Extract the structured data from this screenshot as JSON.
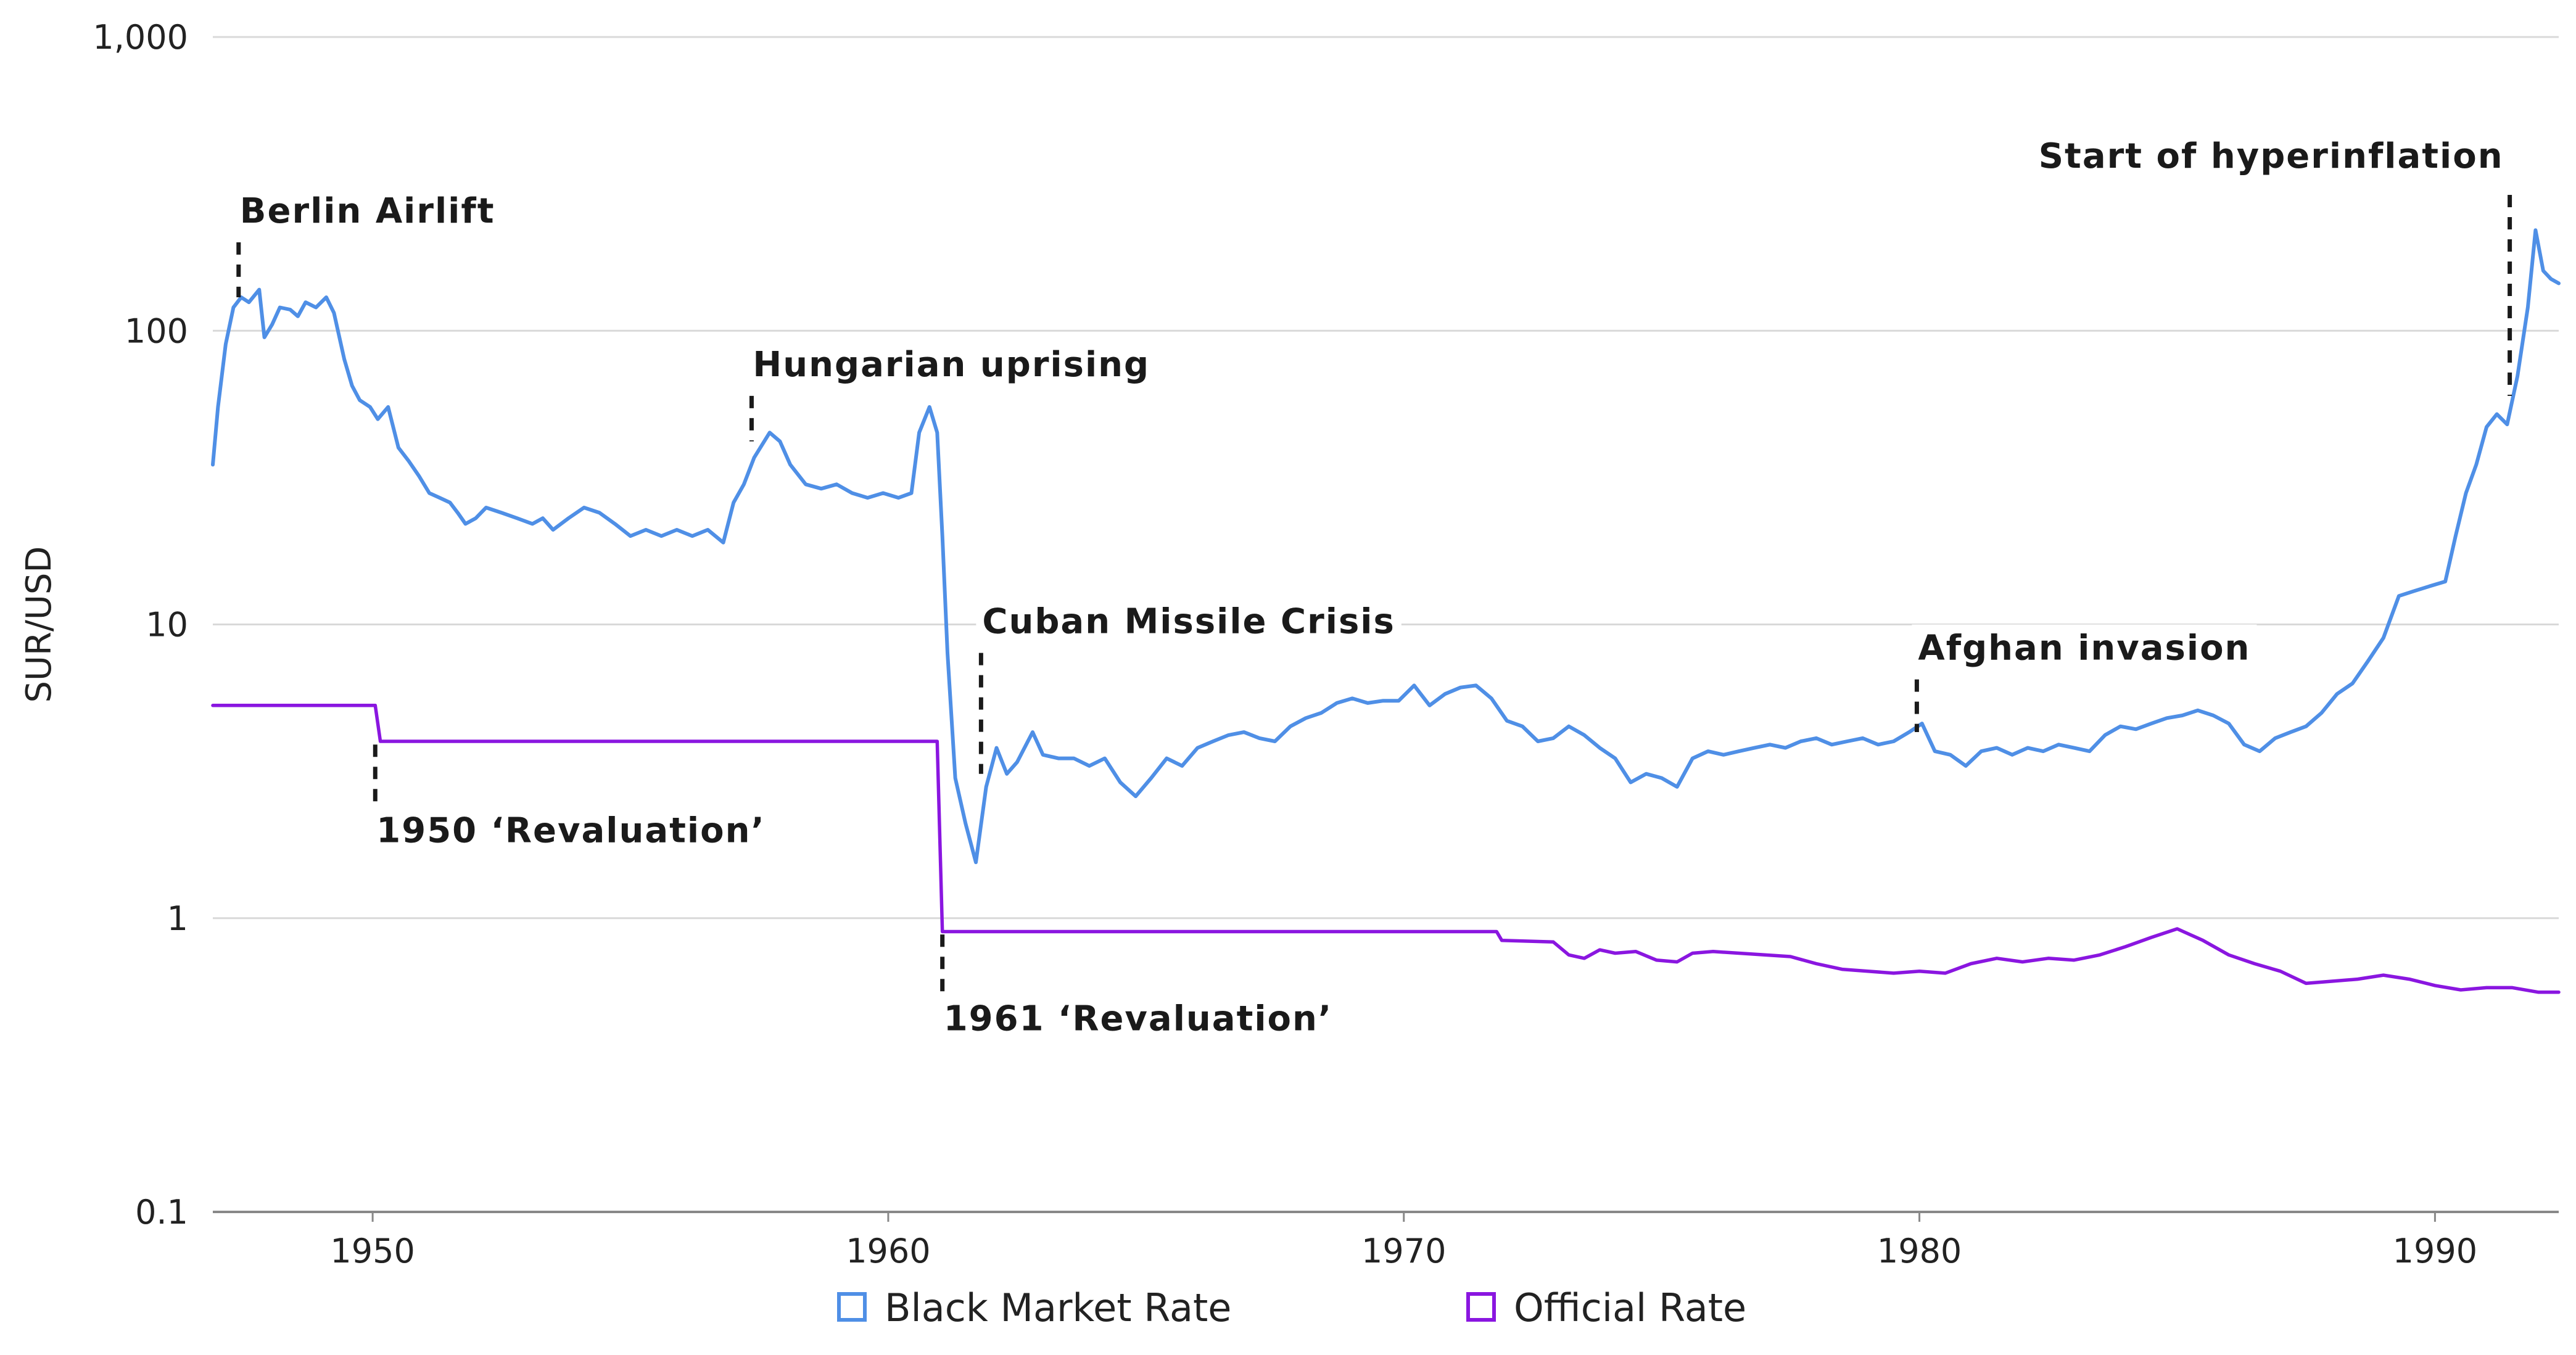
{
  "chart_data": {
    "type": "line",
    "ylabel": "SUR/USD",
    "y_scale": "log",
    "ylim": [
      0.1,
      1000
    ],
    "y_ticks": [
      "0.1",
      "1",
      "10",
      "100",
      "1,000"
    ],
    "xlim": [
      1946.9,
      1992.4
    ],
    "x_ticks": [
      "1950",
      "1960",
      "1970",
      "1980",
      "1990"
    ],
    "grid": true,
    "legend_position": "bottom",
    "series": [
      {
        "name": "Black Market Rate",
        "color": "#4f8fe6",
        "points": [
          [
            1946.9,
            35
          ],
          [
            1947.0,
            55
          ],
          [
            1947.15,
            90
          ],
          [
            1947.3,
            120
          ],
          [
            1947.45,
            130
          ],
          [
            1947.6,
            125
          ],
          [
            1947.8,
            138
          ],
          [
            1947.9,
            95
          ],
          [
            1948.05,
            105
          ],
          [
            1948.2,
            120
          ],
          [
            1948.4,
            118
          ],
          [
            1948.55,
            112
          ],
          [
            1948.7,
            125
          ],
          [
            1948.9,
            120
          ],
          [
            1949.1,
            130
          ],
          [
            1949.25,
            115
          ],
          [
            1949.45,
            80
          ],
          [
            1949.6,
            65
          ],
          [
            1949.75,
            58
          ],
          [
            1949.95,
            55
          ],
          [
            1950.1,
            50
          ],
          [
            1950.3,
            55
          ],
          [
            1950.5,
            40
          ],
          [
            1950.7,
            36
          ],
          [
            1950.9,
            32
          ],
          [
            1951.1,
            28
          ],
          [
            1951.3,
            27
          ],
          [
            1951.5,
            26
          ],
          [
            1951.65,
            24
          ],
          [
            1951.8,
            22
          ],
          [
            1952.0,
            23
          ],
          [
            1952.2,
            25
          ],
          [
            1952.5,
            24
          ],
          [
            1952.8,
            23
          ],
          [
            1953.1,
            22
          ],
          [
            1953.3,
            23
          ],
          [
            1953.5,
            21
          ],
          [
            1953.8,
            23
          ],
          [
            1954.1,
            25
          ],
          [
            1954.4,
            24
          ],
          [
            1954.7,
            22
          ],
          [
            1955.0,
            20
          ],
          [
            1955.3,
            21
          ],
          [
            1955.6,
            20
          ],
          [
            1955.9,
            21
          ],
          [
            1956.2,
            20
          ],
          [
            1956.5,
            21
          ],
          [
            1956.8,
            19
          ],
          [
            1957.0,
            26
          ],
          [
            1957.2,
            30
          ],
          [
            1957.4,
            37
          ],
          [
            1957.7,
            45
          ],
          [
            1957.9,
            42
          ],
          [
            1958.1,
            35
          ],
          [
            1958.4,
            30
          ],
          [
            1958.7,
            29
          ],
          [
            1959.0,
            30
          ],
          [
            1959.3,
            28
          ],
          [
            1959.6,
            27
          ],
          [
            1959.9,
            28
          ],
          [
            1960.2,
            27
          ],
          [
            1960.45,
            28
          ],
          [
            1960.6,
            45
          ],
          [
            1960.8,
            55
          ],
          [
            1960.95,
            45
          ],
          [
            1961.05,
            20
          ],
          [
            1961.15,
            8
          ],
          [
            1961.3,
            3
          ],
          [
            1961.5,
            2.1
          ],
          [
            1961.7,
            1.55
          ],
          [
            1961.9,
            2.8
          ],
          [
            1962.1,
            3.8
          ],
          [
            1962.3,
            3.1
          ],
          [
            1962.5,
            3.4
          ],
          [
            1962.8,
            4.3
          ],
          [
            1963.0,
            3.6
          ],
          [
            1963.3,
            3.5
          ],
          [
            1963.6,
            3.5
          ],
          [
            1963.9,
            3.3
          ],
          [
            1964.2,
            3.5
          ],
          [
            1964.5,
            2.9
          ],
          [
            1964.8,
            2.6
          ],
          [
            1965.1,
            3.0
          ],
          [
            1965.4,
            3.5
          ],
          [
            1965.7,
            3.3
          ],
          [
            1966.0,
            3.8
          ],
          [
            1966.3,
            4.0
          ],
          [
            1966.6,
            4.2
          ],
          [
            1966.9,
            4.3
          ],
          [
            1967.2,
            4.1
          ],
          [
            1967.5,
            4.0
          ],
          [
            1967.8,
            4.5
          ],
          [
            1968.1,
            4.8
          ],
          [
            1968.4,
            5.0
          ],
          [
            1968.7,
            5.4
          ],
          [
            1969.0,
            5.6
          ],
          [
            1969.3,
            5.4
          ],
          [
            1969.6,
            5.5
          ],
          [
            1969.9,
            5.5
          ],
          [
            1970.2,
            6.2
          ],
          [
            1970.5,
            5.3
          ],
          [
            1970.8,
            5.8
          ],
          [
            1971.1,
            6.1
          ],
          [
            1971.4,
            6.2
          ],
          [
            1971.7,
            5.6
          ],
          [
            1972.0,
            4.7
          ],
          [
            1972.3,
            4.5
          ],
          [
            1972.6,
            4.0
          ],
          [
            1972.9,
            4.1
          ],
          [
            1973.2,
            4.5
          ],
          [
            1973.5,
            4.2
          ],
          [
            1973.8,
            3.8
          ],
          [
            1974.1,
            3.5
          ],
          [
            1974.4,
            2.9
          ],
          [
            1974.7,
            3.1
          ],
          [
            1975.0,
            3.0
          ],
          [
            1975.3,
            2.8
          ],
          [
            1975.6,
            3.5
          ],
          [
            1975.9,
            3.7
          ],
          [
            1976.2,
            3.6
          ],
          [
            1976.5,
            3.7
          ],
          [
            1976.8,
            3.8
          ],
          [
            1977.1,
            3.9
          ],
          [
            1977.4,
            3.8
          ],
          [
            1977.7,
            4.0
          ],
          [
            1978.0,
            4.1
          ],
          [
            1978.3,
            3.9
          ],
          [
            1978.6,
            4.0
          ],
          [
            1978.9,
            4.1
          ],
          [
            1979.2,
            3.9
          ],
          [
            1979.5,
            4.0
          ],
          [
            1979.8,
            4.3
          ],
          [
            1980.05,
            4.6
          ],
          [
            1980.3,
            3.7
          ],
          [
            1980.6,
            3.6
          ],
          [
            1980.9,
            3.3
          ],
          [
            1981.2,
            3.7
          ],
          [
            1981.5,
            3.8
          ],
          [
            1981.8,
            3.6
          ],
          [
            1982.1,
            3.8
          ],
          [
            1982.4,
            3.7
          ],
          [
            1982.7,
            3.9
          ],
          [
            1983.0,
            3.8
          ],
          [
            1983.3,
            3.7
          ],
          [
            1983.6,
            4.2
          ],
          [
            1983.9,
            4.5
          ],
          [
            1984.2,
            4.4
          ],
          [
            1984.5,
            4.6
          ],
          [
            1984.8,
            4.8
          ],
          [
            1985.1,
            4.9
          ],
          [
            1985.4,
            5.1
          ],
          [
            1985.7,
            4.9
          ],
          [
            1986.0,
            4.6
          ],
          [
            1986.3,
            3.9
          ],
          [
            1986.6,
            3.7
          ],
          [
            1986.9,
            4.1
          ],
          [
            1987.2,
            4.3
          ],
          [
            1987.5,
            4.5
          ],
          [
            1987.8,
            5.0
          ],
          [
            1988.1,
            5.8
          ],
          [
            1988.4,
            6.3
          ],
          [
            1988.7,
            7.5
          ],
          [
            1989.0,
            9.0
          ],
          [
            1989.3,
            12.5
          ],
          [
            1989.6,
            13.0
          ],
          [
            1989.9,
            13.5
          ],
          [
            1990.2,
            14.0
          ],
          [
            1990.4,
            20
          ],
          [
            1990.6,
            28
          ],
          [
            1990.8,
            35
          ],
          [
            1991.0,
            47
          ],
          [
            1991.2,
            52
          ],
          [
            1991.4,
            48
          ],
          [
            1991.6,
            70
          ],
          [
            1991.8,
            120
          ],
          [
            1991.95,
            220
          ],
          [
            1992.1,
            160
          ],
          [
            1992.25,
            150
          ],
          [
            1992.4,
            145
          ]
        ]
      },
      {
        "name": "Official Rate",
        "color": "#8a16e0",
        "points": [
          [
            1946.9,
            5.3
          ],
          [
            1950.05,
            5.3
          ],
          [
            1950.15,
            4.0
          ],
          [
            1960.95,
            4.0
          ],
          [
            1961.05,
            0.9
          ],
          [
            1971.8,
            0.9
          ],
          [
            1971.9,
            0.84
          ],
          [
            1972.9,
            0.83
          ],
          [
            1973.2,
            0.75
          ],
          [
            1973.5,
            0.73
          ],
          [
            1973.8,
            0.78
          ],
          [
            1974.1,
            0.76
          ],
          [
            1974.5,
            0.77
          ],
          [
            1974.9,
            0.72
          ],
          [
            1975.3,
            0.71
          ],
          [
            1975.6,
            0.76
          ],
          [
            1976.0,
            0.77
          ],
          [
            1976.5,
            0.76
          ],
          [
            1977.0,
            0.75
          ],
          [
            1977.5,
            0.74
          ],
          [
            1978.0,
            0.7
          ],
          [
            1978.5,
            0.67
          ],
          [
            1979.0,
            0.66
          ],
          [
            1979.5,
            0.65
          ],
          [
            1980.0,
            0.66
          ],
          [
            1980.5,
            0.65
          ],
          [
            1981.0,
            0.7
          ],
          [
            1981.5,
            0.73
          ],
          [
            1982.0,
            0.71
          ],
          [
            1982.5,
            0.73
          ],
          [
            1983.0,
            0.72
          ],
          [
            1983.5,
            0.75
          ],
          [
            1984.0,
            0.8
          ],
          [
            1984.5,
            0.86
          ],
          [
            1985.0,
            0.92
          ],
          [
            1985.5,
            0.84
          ],
          [
            1986.0,
            0.75
          ],
          [
            1986.5,
            0.7
          ],
          [
            1987.0,
            0.66
          ],
          [
            1987.5,
            0.6
          ],
          [
            1988.0,
            0.61
          ],
          [
            1988.5,
            0.62
          ],
          [
            1989.0,
            0.64
          ],
          [
            1989.5,
            0.62
          ],
          [
            1990.0,
            0.59
          ],
          [
            1990.5,
            0.57
          ],
          [
            1991.0,
            0.58
          ],
          [
            1991.5,
            0.58
          ],
          [
            1992.0,
            0.56
          ],
          [
            1992.4,
            0.56
          ]
        ]
      }
    ],
    "annotations": [
      {
        "label": "Berlin Airlift",
        "x": 1947.4,
        "from_value": 200,
        "to_value": 130
      },
      {
        "label": "Hungarian uprising",
        "x": 1957.35,
        "from_value": 60,
        "to_value": 42
      },
      {
        "label": "Cuban Missile Crisis",
        "x": 1961.8,
        "from_value": 8,
        "to_value": 3.1
      },
      {
        "label": "Afghan invasion",
        "x": 1979.95,
        "from_value": 6.5,
        "to_value": 4.3
      },
      {
        "label": "Start of hyperinflation",
        "x": 1991.45,
        "from_value": 290,
        "to_value": 60
      },
      {
        "label": "1950 ‘Revaluation’",
        "x": 1950.05,
        "from_value": 3.9,
        "to_value": 2.4
      },
      {
        "label": "1961 ‘Revaluation’",
        "x": 1961.05,
        "from_value": 0.88,
        "to_value": 0.55
      }
    ]
  }
}
